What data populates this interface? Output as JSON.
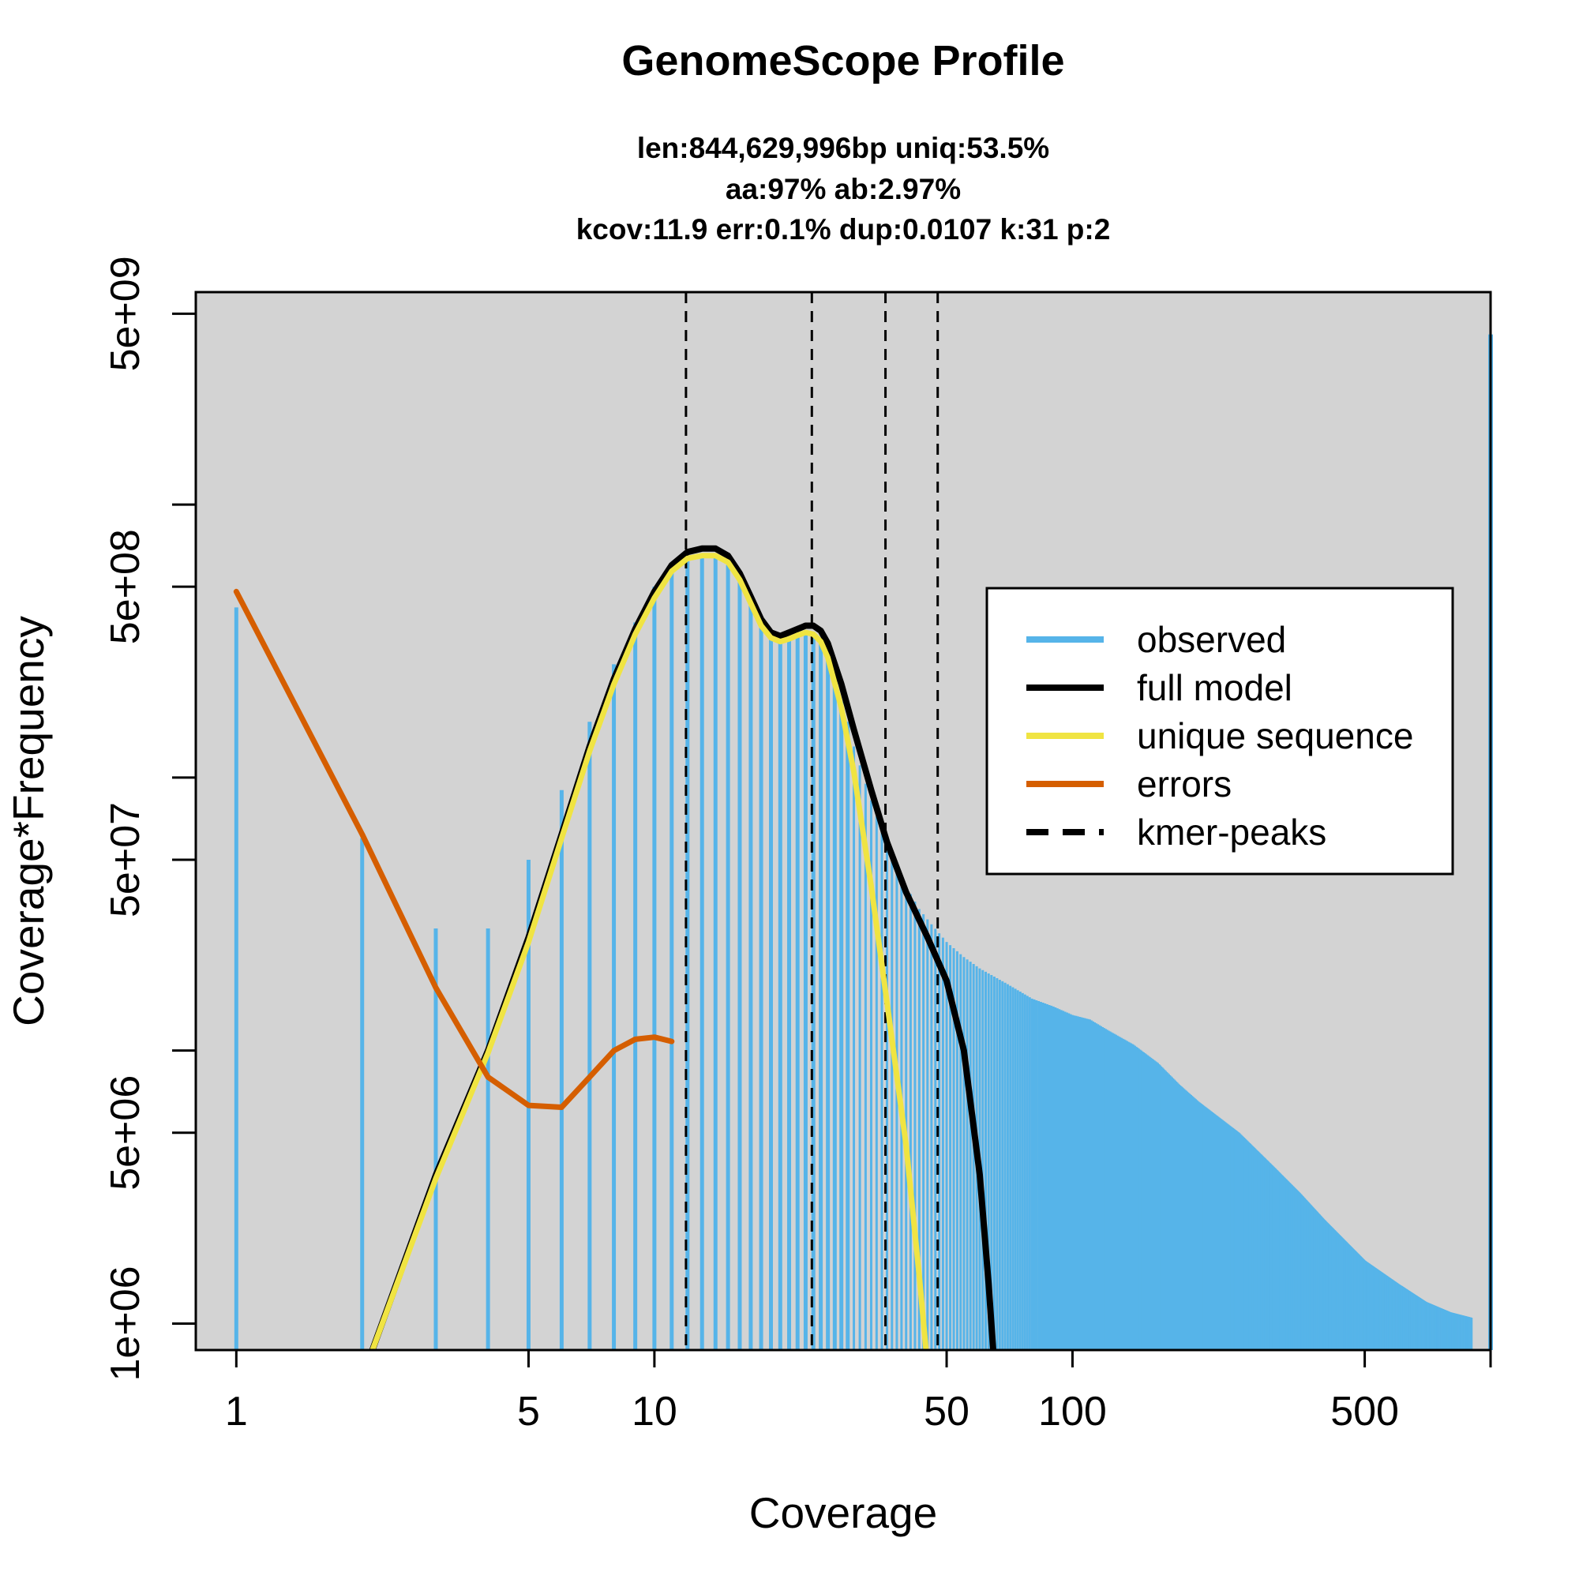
{
  "chart_data": {
    "type": "line",
    "title": "GenomeScope Profile",
    "subtitle_lines": [
      "len:844,629,996bp uniq:53.5%",
      "aa:97% ab:2.97%",
      "kcov:11.9 err:0.1%  dup:0.0107  k:31 p:2"
    ],
    "xlabel": "Coverage",
    "ylabel": "Coverage*Frequency",
    "x_scale": "log",
    "y_scale": "log",
    "xlim": [
      0.8,
      1000
    ],
    "ylim": [
      800000,
      6000000000
    ],
    "x_ticks": [
      {
        "value": 1,
        "label": "1"
      },
      {
        "value": 5,
        "label": "5"
      },
      {
        "value": 10,
        "label": "10"
      },
      {
        "value": 50,
        "label": "50"
      },
      {
        "value": 100,
        "label": "100"
      },
      {
        "value": 500,
        "label": "500"
      }
    ],
    "y_ticks": [
      {
        "value": 1000000,
        "label": "1e+06"
      },
      {
        "value": 5000000,
        "label": "5e+06"
      },
      {
        "value": 10000000,
        "label": ""
      },
      {
        "value": 50000000,
        "label": "5e+07"
      },
      {
        "value": 100000000,
        "label": ""
      },
      {
        "value": 500000000,
        "label": "5e+08"
      },
      {
        "value": 1000000000,
        "label": ""
      },
      {
        "value": 5000000000,
        "label": "5e+09"
      }
    ],
    "grid": false,
    "plot_background": "#d3d3d3",
    "legend_position": "right",
    "legend": [
      {
        "label": "observed",
        "color": "#56b4e9",
        "style": "solid"
      },
      {
        "label": "full model",
        "color": "#000000",
        "style": "solid"
      },
      {
        "label": "unique sequence",
        "color": "#f0e442",
        "style": "solid"
      },
      {
        "label": "errors",
        "color": "#d55e00",
        "style": "solid"
      },
      {
        "label": "kmer-peaks",
        "color": "#000000",
        "style": "dashed"
      }
    ],
    "kmer_peaks": [
      11.9,
      23.8,
      35.7,
      47.6
    ],
    "observed": {
      "name": "observed",
      "color": "#56b4e9",
      "points": [
        [
          1,
          420000000
        ],
        [
          2,
          60000000
        ],
        [
          3,
          28000000
        ],
        [
          4,
          28000000
        ],
        [
          5,
          50000000
        ],
        [
          6,
          90000000
        ],
        [
          7,
          160000000
        ],
        [
          8,
          260000000
        ],
        [
          9,
          370000000
        ],
        [
          10,
          500000000
        ],
        [
          11,
          580000000
        ],
        [
          12,
          620000000
        ],
        [
          13,
          640000000
        ],
        [
          14,
          640000000
        ],
        [
          15,
          600000000
        ],
        [
          16,
          520000000
        ],
        [
          17,
          430000000
        ],
        [
          18,
          360000000
        ],
        [
          19,
          330000000
        ],
        [
          20,
          320000000
        ],
        [
          21,
          325000000
        ],
        [
          22,
          330000000
        ],
        [
          23,
          335000000
        ],
        [
          24,
          330000000
        ],
        [
          25,
          310000000
        ],
        [
          26,
          270000000
        ],
        [
          27,
          230000000
        ],
        [
          28,
          190000000
        ],
        [
          29,
          160000000
        ],
        [
          30,
          130000000
        ],
        [
          32,
          95000000
        ],
        [
          34,
          72000000
        ],
        [
          36,
          58000000
        ],
        [
          38,
          48000000
        ],
        [
          40,
          40000000
        ],
        [
          43,
          33000000
        ],
        [
          46,
          29000000
        ],
        [
          50,
          25000000
        ],
        [
          55,
          22000000
        ],
        [
          60,
          20000000
        ],
        [
          70,
          17500000
        ],
        [
          80,
          15500000
        ],
        [
          90,
          14500000
        ],
        [
          100,
          13500000
        ],
        [
          110,
          13000000
        ],
        [
          120,
          12000000
        ],
        [
          140,
          10500000
        ],
        [
          160,
          9000000
        ],
        [
          180,
          7500000
        ],
        [
          200,
          6500000
        ],
        [
          250,
          5000000
        ],
        [
          300,
          3800000
        ],
        [
          350,
          3000000
        ],
        [
          400,
          2400000
        ],
        [
          450,
          2000000
        ],
        [
          500,
          1700000
        ],
        [
          600,
          1400000
        ],
        [
          700,
          1200000
        ],
        [
          800,
          1100000
        ],
        [
          900,
          1050000
        ],
        [
          1000,
          4200000000
        ]
      ]
    },
    "series": [
      {
        "name": "full model",
        "color": "#000000",
        "points": [
          [
            2.05,
            700000
          ],
          [
            3,
            3500000
          ],
          [
            4,
            10000000
          ],
          [
            5,
            26000000
          ],
          [
            6,
            62000000
          ],
          [
            7,
            130000000
          ],
          [
            8,
            230000000
          ],
          [
            9,
            350000000
          ],
          [
            10,
            480000000
          ],
          [
            11,
            600000000
          ],
          [
            12,
            670000000
          ],
          [
            13,
            690000000
          ],
          [
            14,
            690000000
          ],
          [
            15,
            650000000
          ],
          [
            16,
            560000000
          ],
          [
            17,
            460000000
          ],
          [
            18,
            380000000
          ],
          [
            19,
            340000000
          ],
          [
            20,
            330000000
          ],
          [
            21,
            340000000
          ],
          [
            22,
            350000000
          ],
          [
            23,
            360000000
          ],
          [
            24,
            360000000
          ],
          [
            25,
            345000000
          ],
          [
            26,
            310000000
          ],
          [
            28,
            220000000
          ],
          [
            30,
            150000000
          ],
          [
            33,
            90000000
          ],
          [
            36,
            58000000
          ],
          [
            40,
            38000000
          ],
          [
            45,
            26000000
          ],
          [
            50,
            18000000
          ],
          [
            55,
            10000000
          ],
          [
            60,
            3500000
          ],
          [
            63,
            1400000
          ],
          [
            65,
            700000
          ]
        ]
      },
      {
        "name": "unique sequence",
        "color": "#f0e442",
        "points": [
          [
            2.05,
            700000
          ],
          [
            3,
            3400000
          ],
          [
            4,
            9800000
          ],
          [
            5,
            25000000
          ],
          [
            6,
            60000000
          ],
          [
            7,
            125000000
          ],
          [
            8,
            220000000
          ],
          [
            9,
            335000000
          ],
          [
            10,
            455000000
          ],
          [
            11,
            570000000
          ],
          [
            12,
            635000000
          ],
          [
            13,
            650000000
          ],
          [
            14,
            650000000
          ],
          [
            15,
            615000000
          ],
          [
            16,
            530000000
          ],
          [
            17,
            435000000
          ],
          [
            18,
            360000000
          ],
          [
            19,
            325000000
          ],
          [
            20,
            315000000
          ],
          [
            21,
            322000000
          ],
          [
            22,
            332000000
          ],
          [
            23,
            340000000
          ],
          [
            24,
            335000000
          ],
          [
            25,
            315000000
          ],
          [
            26,
            275000000
          ],
          [
            28,
            180000000
          ],
          [
            30,
            105000000
          ],
          [
            33,
            40000000
          ],
          [
            36,
            15000000
          ],
          [
            40,
            4500000
          ],
          [
            43,
            1500000
          ],
          [
            45,
            700000
          ]
        ]
      },
      {
        "name": "errors",
        "color": "#d55e00",
        "points": [
          [
            1,
            480000000
          ],
          [
            2,
            62000000
          ],
          [
            3,
            17000000
          ],
          [
            4,
            8000000
          ],
          [
            5,
            6300000
          ],
          [
            6,
            6200000
          ],
          [
            7,
            8000000
          ],
          [
            8,
            10000000
          ],
          [
            9,
            11000000
          ],
          [
            10,
            11200000
          ],
          [
            11,
            10800000
          ]
        ]
      }
    ]
  }
}
